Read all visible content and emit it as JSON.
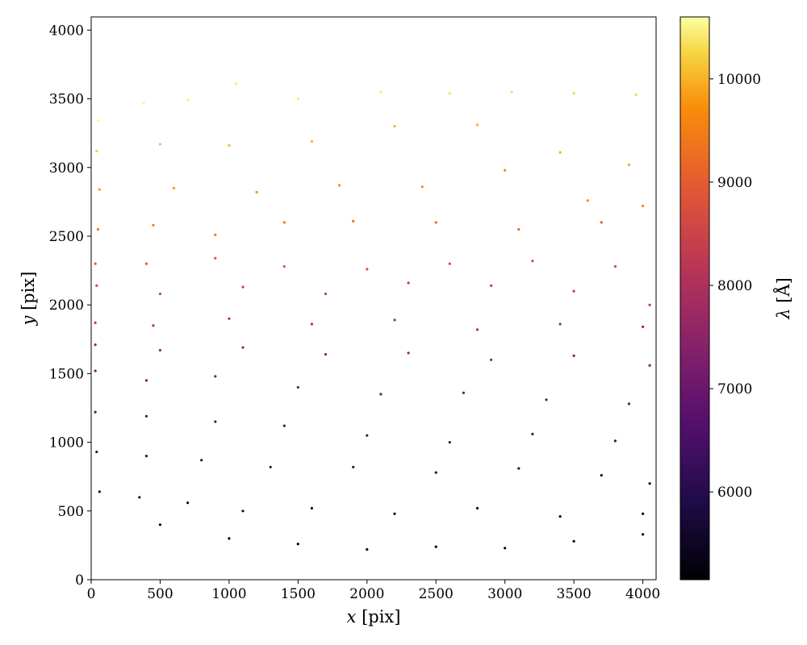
{
  "chart_data": {
    "type": "scatter",
    "title": "",
    "xlabel": "x [pix]",
    "ylabel": "y [pix]",
    "xlim": [
      0,
      4096
    ],
    "ylim": [
      0,
      4096
    ],
    "xticks": [
      0,
      500,
      1000,
      1500,
      2000,
      2500,
      3000,
      3500,
      4000
    ],
    "yticks": [
      0,
      500,
      1000,
      1500,
      2000,
      2500,
      3000,
      3500,
      4000
    ],
    "grid": false,
    "colorbar": {
      "label": "λ [Å]",
      "colormap": "inferno",
      "range": [
        5150,
        10600
      ],
      "ticks": [
        6000,
        7000,
        8000,
        9000,
        10000
      ]
    },
    "color_encodes": "wavelength",
    "series": [
      {
        "points": [
          [
            50,
            3340,
            10500
          ],
          [
            380,
            3470,
            10500
          ],
          [
            700,
            3490,
            10450
          ],
          [
            1050,
            3610,
            10450
          ],
          [
            1500,
            3500,
            10400
          ],
          [
            2100,
            3550,
            10400
          ],
          [
            2600,
            3540,
            10350
          ],
          [
            3050,
            3550,
            10350
          ],
          [
            3500,
            3540,
            10300
          ],
          [
            3950,
            3530,
            10300
          ],
          [
            40,
            3120,
            10200
          ],
          [
            500,
            3170,
            10100
          ],
          [
            1000,
            3160,
            10100
          ],
          [
            1600,
            3190,
            10050
          ],
          [
            2200,
            3300,
            10000
          ],
          [
            2800,
            3310,
            9950
          ],
          [
            3400,
            3110,
            9950
          ],
          [
            3900,
            3020,
            9900
          ],
          [
            60,
            2840,
            9850
          ],
          [
            600,
            2850,
            9800
          ],
          [
            1200,
            2820,
            9750
          ],
          [
            1800,
            2870,
            9700
          ],
          [
            2400,
            2860,
            9700
          ],
          [
            3000,
            2980,
            9650
          ],
          [
            3600,
            2760,
            9600
          ],
          [
            4000,
            2720,
            9550
          ],
          [
            50,
            2550,
            9450
          ],
          [
            450,
            2580,
            9400
          ],
          [
            900,
            2510,
            9350
          ],
          [
            1400,
            2600,
            9300
          ],
          [
            1900,
            2610,
            9250
          ],
          [
            2500,
            2600,
            9200
          ],
          [
            3100,
            2550,
            9150
          ],
          [
            3700,
            2600,
            9100
          ],
          [
            30,
            2300,
            9000
          ],
          [
            400,
            2300,
            8950
          ],
          [
            900,
            2340,
            8900
          ],
          [
            1400,
            2280,
            8850
          ],
          [
            2000,
            2260,
            8800
          ],
          [
            2600,
            2300,
            8750
          ],
          [
            3200,
            2320,
            8700
          ],
          [
            3800,
            2280,
            8650
          ],
          [
            40,
            2140,
            8550
          ],
          [
            500,
            2080,
            8500
          ],
          [
            1100,
            2130,
            8450
          ],
          [
            1700,
            2080,
            8400
          ],
          [
            2300,
            2160,
            8350
          ],
          [
            2900,
            2140,
            8300
          ],
          [
            3500,
            2100,
            8250
          ],
          [
            4050,
            2000,
            8200
          ],
          [
            30,
            1870,
            8100
          ],
          [
            450,
            1850,
            8050
          ],
          [
            1000,
            1900,
            8000
          ],
          [
            1600,
            1860,
            7950
          ],
          [
            2200,
            1890,
            7900
          ],
          [
            2800,
            1820,
            7850
          ],
          [
            3400,
            1860,
            7800
          ],
          [
            4000,
            1840,
            7750
          ],
          [
            30,
            1710,
            7650
          ],
          [
            500,
            1670,
            7600
          ],
          [
            1100,
            1690,
            7550
          ],
          [
            1700,
            1640,
            7500
          ],
          [
            2300,
            1650,
            7450
          ],
          [
            2900,
            1600,
            7400
          ],
          [
            3500,
            1630,
            7350
          ],
          [
            4050,
            1560,
            7300
          ],
          [
            30,
            1520,
            7200
          ],
          [
            400,
            1450,
            7150
          ],
          [
            900,
            1480,
            7100
          ],
          [
            1500,
            1400,
            7050
          ],
          [
            2100,
            1350,
            7000
          ],
          [
            2700,
            1360,
            6950
          ],
          [
            3300,
            1310,
            6900
          ],
          [
            3900,
            1280,
            6850
          ],
          [
            30,
            1220,
            6750
          ],
          [
            400,
            1190,
            6700
          ],
          [
            900,
            1150,
            6650
          ],
          [
            1400,
            1120,
            6600
          ],
          [
            2000,
            1050,
            6550
          ],
          [
            2600,
            1000,
            6500
          ],
          [
            3200,
            1060,
            6450
          ],
          [
            3800,
            1010,
            6400
          ],
          [
            40,
            930,
            6300
          ],
          [
            400,
            900,
            6250
          ],
          [
            800,
            870,
            6200
          ],
          [
            1300,
            820,
            6150
          ],
          [
            1900,
            820,
            6100
          ],
          [
            2500,
            780,
            6050
          ],
          [
            3100,
            810,
            6000
          ],
          [
            3700,
            760,
            5950
          ],
          [
            4050,
            700,
            5900
          ],
          [
            60,
            640,
            5800
          ],
          [
            350,
            600,
            5750
          ],
          [
            700,
            560,
            5700
          ],
          [
            1100,
            500,
            5650
          ],
          [
            1600,
            520,
            5600
          ],
          [
            2200,
            480,
            5550
          ],
          [
            2800,
            520,
            5500
          ],
          [
            3400,
            460,
            5450
          ],
          [
            4000,
            480,
            5400
          ],
          [
            500,
            400,
            5350
          ],
          [
            1000,
            300,
            5300
          ],
          [
            1500,
            260,
            5250
          ],
          [
            2000,
            220,
            5250
          ],
          [
            2500,
            240,
            5200
          ],
          [
            3000,
            230,
            5200
          ],
          [
            3500,
            280,
            5180
          ],
          [
            4000,
            330,
            5180
          ]
        ]
      }
    ]
  }
}
